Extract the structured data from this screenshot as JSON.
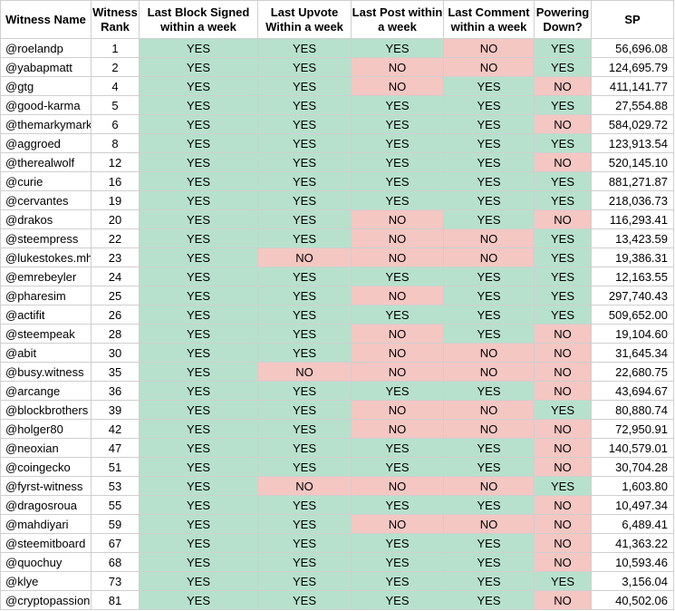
{
  "headers": [
    "Witness Name",
    "Witness Rank",
    "Last Block Signed within a week",
    "Last Upvote Within a week",
    "Last Post within a week",
    "Last Comment within a week",
    "Powering Down?",
    "SP"
  ],
  "rows": [
    {
      "name": "@roelandp",
      "rank": "1",
      "flags": [
        "YES",
        "YES",
        "YES",
        "NO",
        "YES"
      ],
      "sp": "56,696.08"
    },
    {
      "name": "@yabapmatt",
      "rank": "2",
      "flags": [
        "YES",
        "YES",
        "NO",
        "NO",
        "YES"
      ],
      "sp": "124,695.79"
    },
    {
      "name": "@gtg",
      "rank": "4",
      "flags": [
        "YES",
        "YES",
        "NO",
        "YES",
        "NO"
      ],
      "sp": "411,141.77"
    },
    {
      "name": "@good-karma",
      "rank": "5",
      "flags": [
        "YES",
        "YES",
        "YES",
        "YES",
        "YES"
      ],
      "sp": "27,554.88"
    },
    {
      "name": "@themarkymark",
      "rank": "6",
      "flags": [
        "YES",
        "YES",
        "YES",
        "YES",
        "NO"
      ],
      "sp": "584,029.72"
    },
    {
      "name": "@aggroed",
      "rank": "8",
      "flags": [
        "YES",
        "YES",
        "YES",
        "YES",
        "YES"
      ],
      "sp": "123,913.54"
    },
    {
      "name": "@therealwolf",
      "rank": "12",
      "flags": [
        "YES",
        "YES",
        "YES",
        "YES",
        "NO"
      ],
      "sp": "520,145.10"
    },
    {
      "name": "@curie",
      "rank": "16",
      "flags": [
        "YES",
        "YES",
        "YES",
        "YES",
        "YES"
      ],
      "sp": "881,271.87"
    },
    {
      "name": "@cervantes",
      "rank": "19",
      "flags": [
        "YES",
        "YES",
        "YES",
        "YES",
        "YES"
      ],
      "sp": "218,036.73"
    },
    {
      "name": "@drakos",
      "rank": "20",
      "flags": [
        "YES",
        "YES",
        "NO",
        "YES",
        "NO"
      ],
      "sp": "116,293.41"
    },
    {
      "name": "@steempress",
      "rank": "22",
      "flags": [
        "YES",
        "YES",
        "NO",
        "NO",
        "YES"
      ],
      "sp": "13,423.59"
    },
    {
      "name": "@lukestokes.mhth",
      "rank": "23",
      "flags": [
        "YES",
        "NO",
        "NO",
        "NO",
        "YES"
      ],
      "sp": "19,386.31"
    },
    {
      "name": "@emrebeyler",
      "rank": "24",
      "flags": [
        "YES",
        "YES",
        "YES",
        "YES",
        "YES"
      ],
      "sp": "12,163.55"
    },
    {
      "name": "@pharesim",
      "rank": "25",
      "flags": [
        "YES",
        "YES",
        "NO",
        "YES",
        "YES"
      ],
      "sp": "297,740.43"
    },
    {
      "name": "@actifit",
      "rank": "26",
      "flags": [
        "YES",
        "YES",
        "YES",
        "YES",
        "YES"
      ],
      "sp": "509,652.00"
    },
    {
      "name": "@steempeak",
      "rank": "28",
      "flags": [
        "YES",
        "YES",
        "NO",
        "YES",
        "NO"
      ],
      "sp": "19,104.60"
    },
    {
      "name": "@abit",
      "rank": "30",
      "flags": [
        "YES",
        "YES",
        "NO",
        "NO",
        "NO"
      ],
      "sp": "31,645.34"
    },
    {
      "name": "@busy.witness",
      "rank": "35",
      "flags": [
        "YES",
        "NO",
        "NO",
        "NO",
        "NO"
      ],
      "sp": "22,680.75"
    },
    {
      "name": "@arcange",
      "rank": "36",
      "flags": [
        "YES",
        "YES",
        "YES",
        "YES",
        "NO"
      ],
      "sp": "43,694.67"
    },
    {
      "name": "@blockbrothers",
      "rank": "39",
      "flags": [
        "YES",
        "YES",
        "NO",
        "NO",
        "YES"
      ],
      "sp": "80,880.74"
    },
    {
      "name": "@holger80",
      "rank": "42",
      "flags": [
        "YES",
        "YES",
        "NO",
        "NO",
        "NO"
      ],
      "sp": "72,950.91"
    },
    {
      "name": "@neoxian",
      "rank": "47",
      "flags": [
        "YES",
        "YES",
        "YES",
        "YES",
        "NO"
      ],
      "sp": "140,579.01"
    },
    {
      "name": "@coingecko",
      "rank": "51",
      "flags": [
        "YES",
        "YES",
        "YES",
        "YES",
        "NO"
      ],
      "sp": "30,704.28"
    },
    {
      "name": "@fyrst-witness",
      "rank": "53",
      "flags": [
        "YES",
        "NO",
        "NO",
        "NO",
        "YES"
      ],
      "sp": "1,603.80"
    },
    {
      "name": "@dragosroua",
      "rank": "55",
      "flags": [
        "YES",
        "YES",
        "YES",
        "YES",
        "NO"
      ],
      "sp": "10,497.34"
    },
    {
      "name": "@mahdiyari",
      "rank": "59",
      "flags": [
        "YES",
        "YES",
        "NO",
        "NO",
        "NO"
      ],
      "sp": "6,489.41"
    },
    {
      "name": "@steemitboard",
      "rank": "67",
      "flags": [
        "YES",
        "YES",
        "YES",
        "YES",
        "NO"
      ],
      "sp": "41,363.22"
    },
    {
      "name": "@quochuy",
      "rank": "68",
      "flags": [
        "YES",
        "YES",
        "YES",
        "YES",
        "NO"
      ],
      "sp": "10,593.46"
    },
    {
      "name": "@klye",
      "rank": "73",
      "flags": [
        "YES",
        "YES",
        "YES",
        "YES",
        "YES"
      ],
      "sp": "3,156.04"
    },
    {
      "name": "@cryptopassion",
      "rank": "81",
      "flags": [
        "YES",
        "YES",
        "YES",
        "YES",
        "NO"
      ],
      "sp": "40,502.06"
    }
  ],
  "colors": {
    "yes": "#b7e1cd",
    "no": "#f4c7c3",
    "grid": "#cfcfcf"
  }
}
